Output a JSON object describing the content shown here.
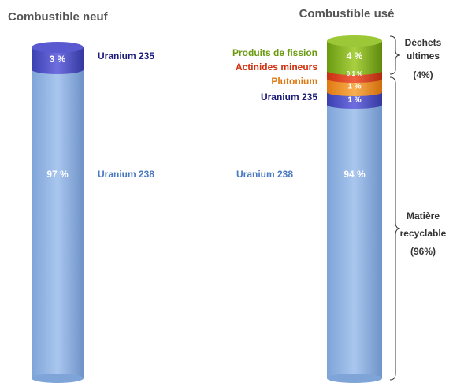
{
  "left": {
    "title": "Combustible neuf",
    "segments": [
      {
        "pct": "3 %",
        "label": "Uranium 235"
      },
      {
        "pct": "97 %",
        "label": "Uranium 238"
      }
    ]
  },
  "right": {
    "title": "Combustible usé",
    "segments": [
      {
        "pct": "4 %",
        "label": "Produits de fission"
      },
      {
        "pct": "0,1 %",
        "label": "Actinides mineurs"
      },
      {
        "pct": "1 %",
        "label": "Plutonium"
      },
      {
        "pct": "1 %",
        "label": "Uranium 235"
      },
      {
        "pct": "94 %",
        "label": "Uranium 238"
      }
    ]
  },
  "groups": [
    {
      "lines": [
        "Déchets",
        "ultimes",
        "(4%)"
      ]
    },
    {
      "lines": [
        "Matière",
        "recyclable",
        "(96%)"
      ]
    }
  ]
}
